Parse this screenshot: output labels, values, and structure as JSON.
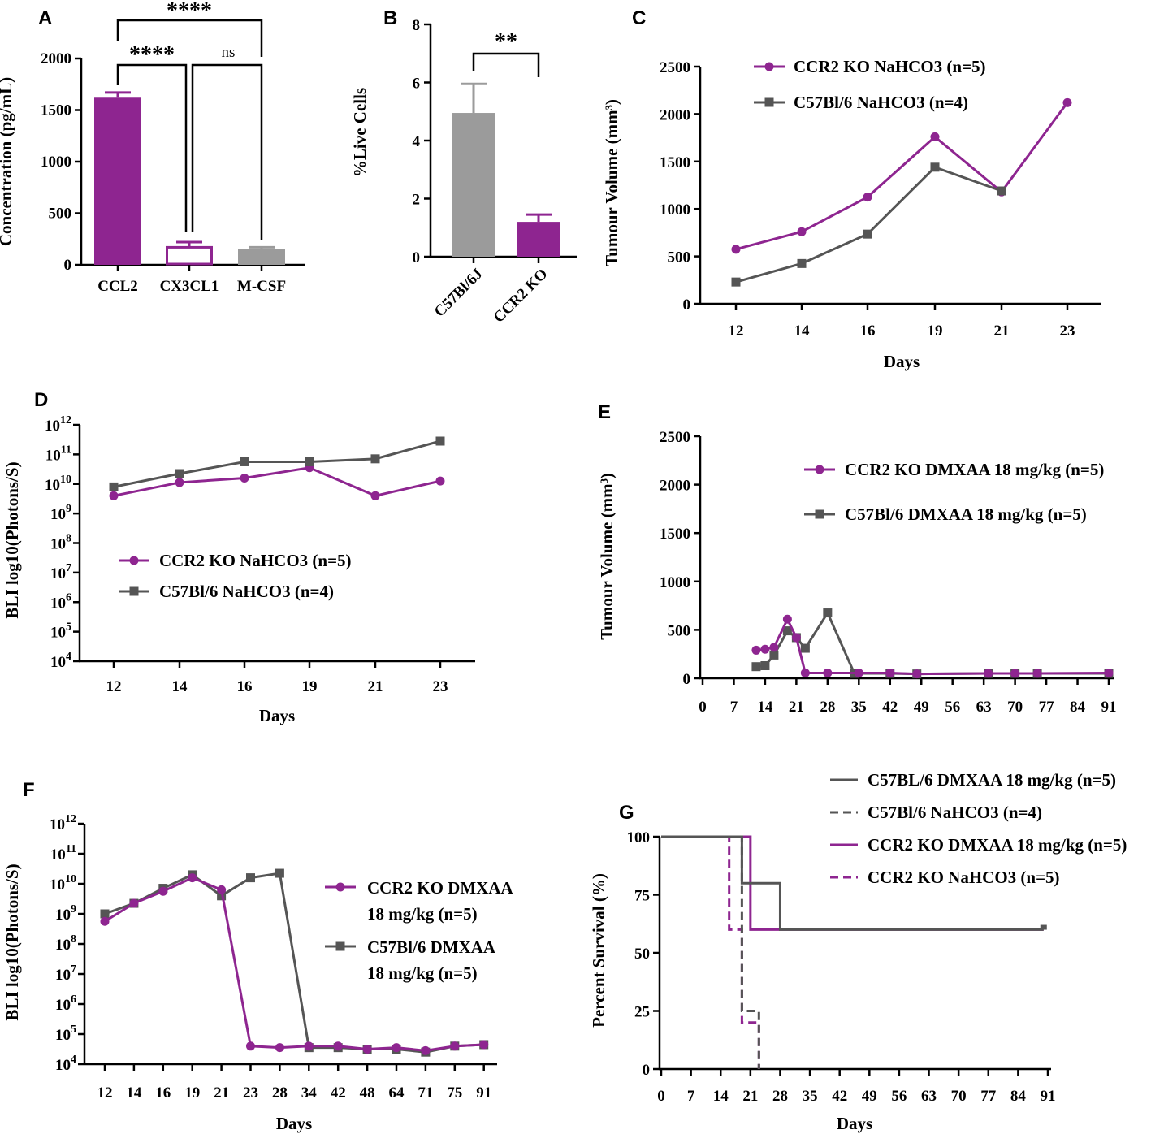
{
  "colors": {
    "purple": "#8e2590",
    "dark_gray": "#555555",
    "light_gray": "#9b9b9b"
  },
  "chart_data": [
    {
      "id": "A",
      "type": "bar",
      "title": "",
      "ylabel": "Concentration (pg/mL)",
      "categories": [
        "CCL2",
        "CX3CL1",
        "M-CSF"
      ],
      "values": [
        1620,
        170,
        150
      ],
      "errors": [
        50,
        50,
        20
      ],
      "styles": [
        "filled-purple",
        "open-purple",
        "filled-gray"
      ],
      "ylim": [
        0,
        2000
      ],
      "yticks": [
        "0",
        "500",
        "1000",
        "1500",
        "2000"
      ],
      "annotations": [
        {
          "label": "****",
          "from": "CCL2",
          "to": "M-CSF"
        },
        {
          "label": "****",
          "from": "CCL2",
          "to": "CX3CL1"
        },
        {
          "label": "ns",
          "from": "CX3CL1",
          "to": "M-CSF"
        }
      ]
    },
    {
      "id": "B",
      "type": "bar",
      "ylabel": "%Live Cells",
      "categories": [
        "C57Bl/6J",
        "CCR2 KO"
      ],
      "values": [
        4.95,
        1.2
      ],
      "errors": [
        1.0,
        0.25
      ],
      "ylim": [
        0,
        8
      ],
      "yticks": [
        "0",
        "2",
        "4",
        "6",
        "8"
      ],
      "annotations": [
        {
          "label": "**",
          "from": "C57Bl/6J",
          "to": "CCR2 KO"
        }
      ]
    },
    {
      "id": "C",
      "type": "line",
      "xlabel": "Days",
      "ylabel": "Tumour Volume (mm³)",
      "x": [
        "12",
        "14",
        "16",
        "19",
        "21",
        "23"
      ],
      "ylim": [
        0,
        2500
      ],
      "yticks": [
        "0",
        "500",
        "1000",
        "1500",
        "2000",
        "2500"
      ],
      "series": [
        {
          "name": "CCR2 KO NaHCO3 (n=5)",
          "values": [
            575,
            760,
            1125,
            1760,
            1180,
            2120
          ]
        },
        {
          "name": "C57Bl/6 NaHCO3 (n=4)",
          "values": [
            230,
            425,
            735,
            1440,
            1190,
            null
          ]
        }
      ]
    },
    {
      "id": "D",
      "type": "line",
      "xlabel": "Days",
      "ylabel": "BLI log10(Photons/S)",
      "x": [
        "12",
        "14",
        "16",
        "19",
        "21",
        "23"
      ],
      "ylim_log10": [
        4,
        12
      ],
      "yticks": [
        {
          "base": "10",
          "exp": "4"
        },
        {
          "base": "10",
          "exp": "5"
        },
        {
          "base": "10",
          "exp": "6"
        },
        {
          "base": "10",
          "exp": "7"
        },
        {
          "base": "10",
          "exp": "8"
        },
        {
          "base": "10",
          "exp": "9"
        },
        {
          "base": "10",
          "exp": "10"
        },
        {
          "base": "10",
          "exp": "11"
        },
        {
          "base": "10",
          "exp": "12"
        }
      ],
      "series": [
        {
          "name": "CCR2 KO NaHCO3 (n=5)",
          "log10_values": [
            9.6,
            10.05,
            10.2,
            10.55,
            9.6,
            10.1
          ]
        },
        {
          "name": "C57Bl/6 NaHCO3 (n=4)",
          "log10_values": [
            9.9,
            10.35,
            10.75,
            10.75,
            10.85,
            11.45
          ]
        }
      ]
    },
    {
      "id": "E",
      "type": "line",
      "xlabel": "",
      "ylabel": "Tumour Volume (mm³)",
      "xlim": [
        0,
        91
      ],
      "xticks": [
        "0",
        "7",
        "14",
        "21",
        "28",
        "35",
        "42",
        "49",
        "56",
        "63",
        "70",
        "77",
        "84",
        "91"
      ],
      "ylim": [
        0,
        2500
      ],
      "yticks": [
        "0",
        "500",
        "1000",
        "1500",
        "2000",
        "2500"
      ],
      "series": [
        {
          "name": "CCR2 KO DMXAA 18 mg/kg (n=5)",
          "x": [
            12,
            14,
            16,
            19,
            21,
            23,
            28,
            35,
            42,
            48,
            64,
            70,
            75,
            91
          ],
          "values": [
            290,
            300,
            320,
            610,
            420,
            55,
            55,
            55,
            55,
            45,
            50,
            50,
            50,
            55
          ]
        },
        {
          "name": "C57Bl/6 DMXAA 18 mg/kg (n=5)",
          "x": [
            12,
            14,
            16,
            19,
            21,
            23,
            28,
            34,
            42,
            48,
            64,
            70,
            75,
            91
          ],
          "values": [
            120,
            130,
            240,
            490,
            420,
            310,
            675,
            50,
            50,
            45,
            50,
            50,
            50,
            50
          ]
        }
      ]
    },
    {
      "id": "F",
      "type": "line",
      "xlabel": "Days",
      "ylabel": "BLI log10(Photons/S)",
      "x": [
        "12",
        "14",
        "16",
        "19",
        "21",
        "23",
        "28",
        "34",
        "42",
        "48",
        "64",
        "71",
        "75",
        "91"
      ],
      "ylim_log10": [
        4,
        12
      ],
      "yticks": [
        {
          "base": "10",
          "exp": "4"
        },
        {
          "base": "10",
          "exp": "5"
        },
        {
          "base": "10",
          "exp": "6"
        },
        {
          "base": "10",
          "exp": "7"
        },
        {
          "base": "10",
          "exp": "8"
        },
        {
          "base": "10",
          "exp": "9"
        },
        {
          "base": "10",
          "exp": "10"
        },
        {
          "base": "10",
          "exp": "11"
        },
        {
          "base": "10",
          "exp": "12"
        }
      ],
      "series": [
        {
          "name": "CCR2 KO DMXAA 18 mg/kg (n=5)",
          "legend_lines": [
            "CCR2 KO DMXAA",
            "18 mg/kg (n=5)"
          ],
          "log10_values": [
            8.75,
            9.35,
            9.75,
            10.2,
            9.8,
            4.6,
            4.55,
            4.6,
            4.6,
            4.5,
            4.55,
            4.45,
            4.6,
            4.65
          ]
        },
        {
          "name": "C57Bl/6 DMXAA 18 mg/kg (n=5)",
          "legend_lines": [
            "C57Bl/6 DMXAA",
            "18 mg/kg (n=5)"
          ],
          "log10_values": [
            9.0,
            9.35,
            9.85,
            10.3,
            9.6,
            10.2,
            10.35,
            4.55,
            4.55,
            4.5,
            4.5,
            4.4,
            4.6,
            4.65
          ]
        }
      ]
    },
    {
      "id": "G",
      "type": "line",
      "subtype": "kaplan-meier",
      "xlabel": "Days",
      "ylabel": "Percent Survival (%)",
      "xlim": [
        0,
        91
      ],
      "xticks": [
        "0",
        "7",
        "14",
        "21",
        "28",
        "35",
        "42",
        "49",
        "56",
        "63",
        "70",
        "77",
        "84",
        "91"
      ],
      "ylim": [
        0,
        100
      ],
      "yticks": [
        "0",
        "25",
        "50",
        "75",
        "100"
      ],
      "series": [
        {
          "name": "C57BL/6 DMXAA 18 mg/kg (n=5)",
          "steps": [
            [
              0,
              100
            ],
            [
              19,
              100
            ],
            [
              19,
              80
            ],
            [
              28,
              80
            ],
            [
              28,
              60
            ],
            [
              90,
              60
            ]
          ]
        },
        {
          "name": "C57Bl/6 NaHCO3 (n=4)",
          "steps": [
            [
              0,
              100
            ],
            [
              19,
              100
            ],
            [
              19,
              25
            ],
            [
              23,
              25
            ],
            [
              23,
              0
            ]
          ]
        },
        {
          "name": "CCR2 KO DMXAA 18 mg/kg (n=5)",
          "steps": [
            [
              0,
              100
            ],
            [
              21,
              100
            ],
            [
              21,
              60
            ],
            [
              90,
              60
            ]
          ]
        },
        {
          "name": "CCR2 KO NaHCO3 (n=5)",
          "steps": [
            [
              0,
              100
            ],
            [
              16,
              100
            ],
            [
              16,
              60
            ],
            [
              19,
              60
            ],
            [
              19,
              20
            ],
            [
              23,
              20
            ],
            [
              23,
              0
            ]
          ]
        }
      ]
    }
  ]
}
